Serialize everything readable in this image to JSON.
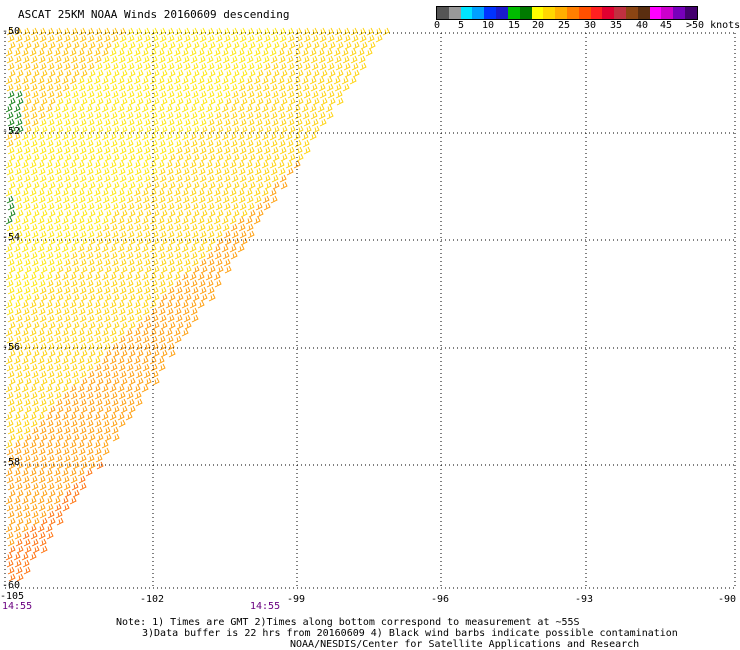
{
  "title": "ASCAT 25KM NOAA Winds 20160609 descending",
  "legend": {
    "colors": [
      "#555555",
      "#999999",
      "#00e5ff",
      "#00a0ff",
      "#0033ff",
      "#1a1acc",
      "#00bb00",
      "#007a00",
      "#ffff00",
      "#ffd700",
      "#ffae00",
      "#ff7f00",
      "#ff5000",
      "#ff2020",
      "#e00030",
      "#c03040",
      "#8b4513",
      "#5a2e10",
      "#ff00ff",
      "#cc00cc",
      "#7700bb",
      "#44006f"
    ],
    "labels": [
      "0",
      "5",
      "10",
      "15",
      "20",
      "25",
      "30",
      "35",
      "40",
      "45",
      ">50 knots"
    ]
  },
  "axes": {
    "lat_labels": [
      "-50",
      "-52",
      "-54",
      "-56",
      "-58",
      "-60"
    ],
    "lon_labels": [
      "-105",
      "-102",
      "-99",
      "-96",
      "-93",
      "-90"
    ]
  },
  "times": [
    "14:55",
    "14:55"
  ],
  "notes": [
    "Note: 1) Times are GMT 2)Times along bottom correspond to measurement at ~55S",
    "3)Data buffer is 22 hrs from 20160609 4) Black wind barbs indicate possible contamination",
    "NOAA/NESDIS/Center for Satellite Applications and Research"
  ]
}
